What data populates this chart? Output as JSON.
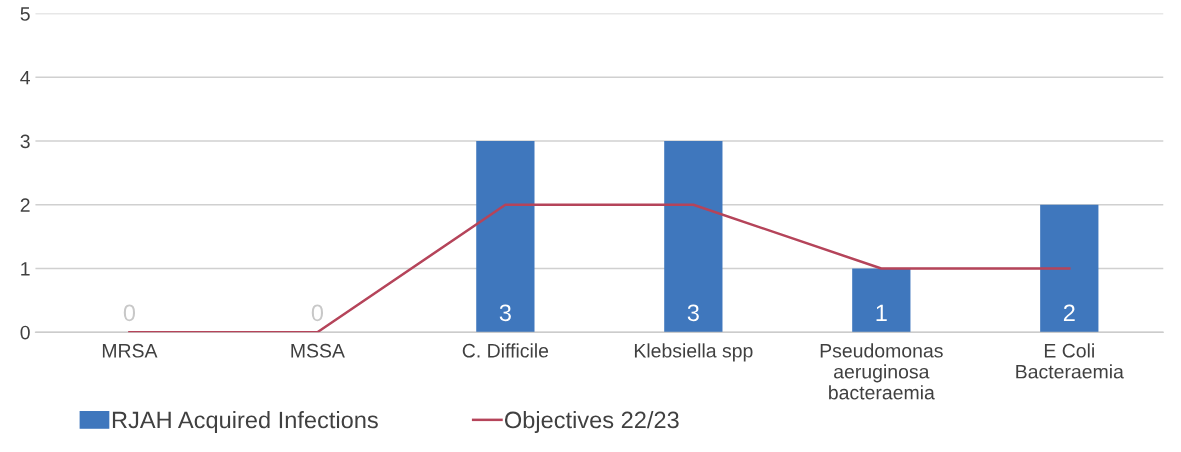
{
  "chart_data": {
    "type": "bar",
    "categories": [
      "MRSA",
      "MSSA",
      "C. Difficile",
      "Klebsiella spp",
      "Pseudomonas\naeruginosa\nbacteraemia",
      "E Coli\nBacteraemia"
    ],
    "series": [
      {
        "name": "RJAH Acquired Infections",
        "color": "#3f77bd",
        "values": [
          0,
          0,
          3,
          3,
          1,
          2
        ],
        "value_labels": [
          "0",
          "0",
          "3",
          "3",
          "1",
          "2"
        ]
      },
      {
        "name": "Objectives 22/23",
        "type": "line",
        "color": "#b5445a",
        "values": [
          0,
          0,
          2,
          2,
          1,
          1
        ]
      }
    ],
    "ylim": [
      0,
      5
    ],
    "yticks": [
      0,
      1,
      2,
      3,
      4,
      5
    ],
    "grid": "y",
    "legend": "bottom left"
  }
}
